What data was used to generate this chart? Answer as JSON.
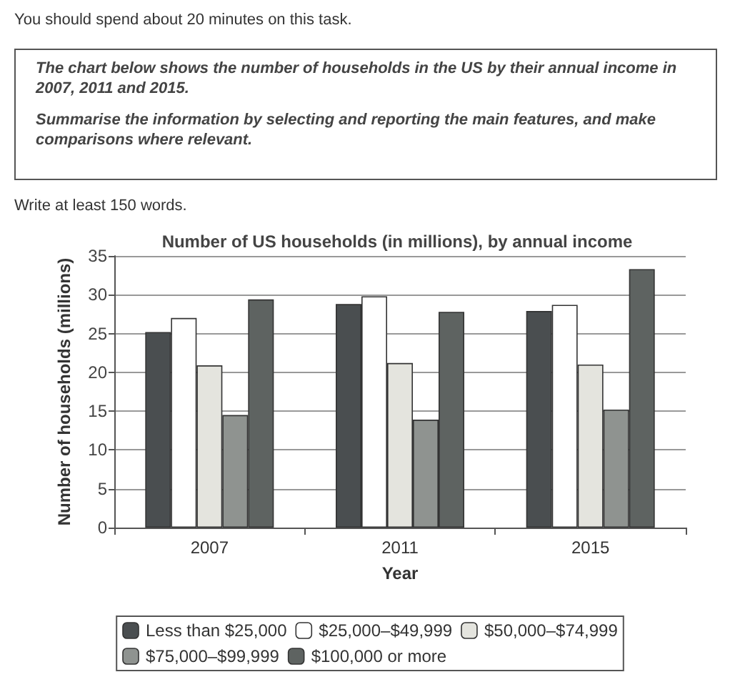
{
  "chart_data": {
    "type": "bar",
    "title": "Number of US households (in millions), by annual income",
    "xlabel": "Year",
    "ylabel": "Number of households (millions)",
    "annotations": [
      "You should spend about 20 minutes on this task.",
      "The chart below shows the number of households in the US by their annual income in 2007, 2011 and 2015.",
      "Summarise the information by selecting and reporting the main features, and make comparisons where relevant.",
      "Write at least 150 words."
    ],
    "categories": [
      "2007",
      "2011",
      "2015"
    ],
    "series": [
      {
        "name": "Less than $25,000",
        "color": "#4a4e50",
        "values": [
          25.2,
          28.8,
          27.9
        ]
      },
      {
        "name": "$25,000–$49,999",
        "color": "#ffffff",
        "values": [
          27,
          29.8,
          28.7
        ]
      },
      {
        "name": "$50,000–$74,999",
        "color": "#e4e4de",
        "values": [
          20.9,
          21.2,
          21
        ]
      },
      {
        "name": "$75,000–$99,999",
        "color": "#8f9390",
        "values": [
          14.5,
          13.9,
          15.2
        ]
      },
      {
        "name": "$100,000 or more",
        "color": "#5e6361",
        "values": [
          29.4,
          27.8,
          33.3
        ]
      }
    ],
    "ylim": [
      0,
      35
    ],
    "yticks": [
      0,
      5,
      10,
      15,
      20,
      25,
      30,
      35
    ],
    "grid": "y",
    "legend": "bottom"
  }
}
